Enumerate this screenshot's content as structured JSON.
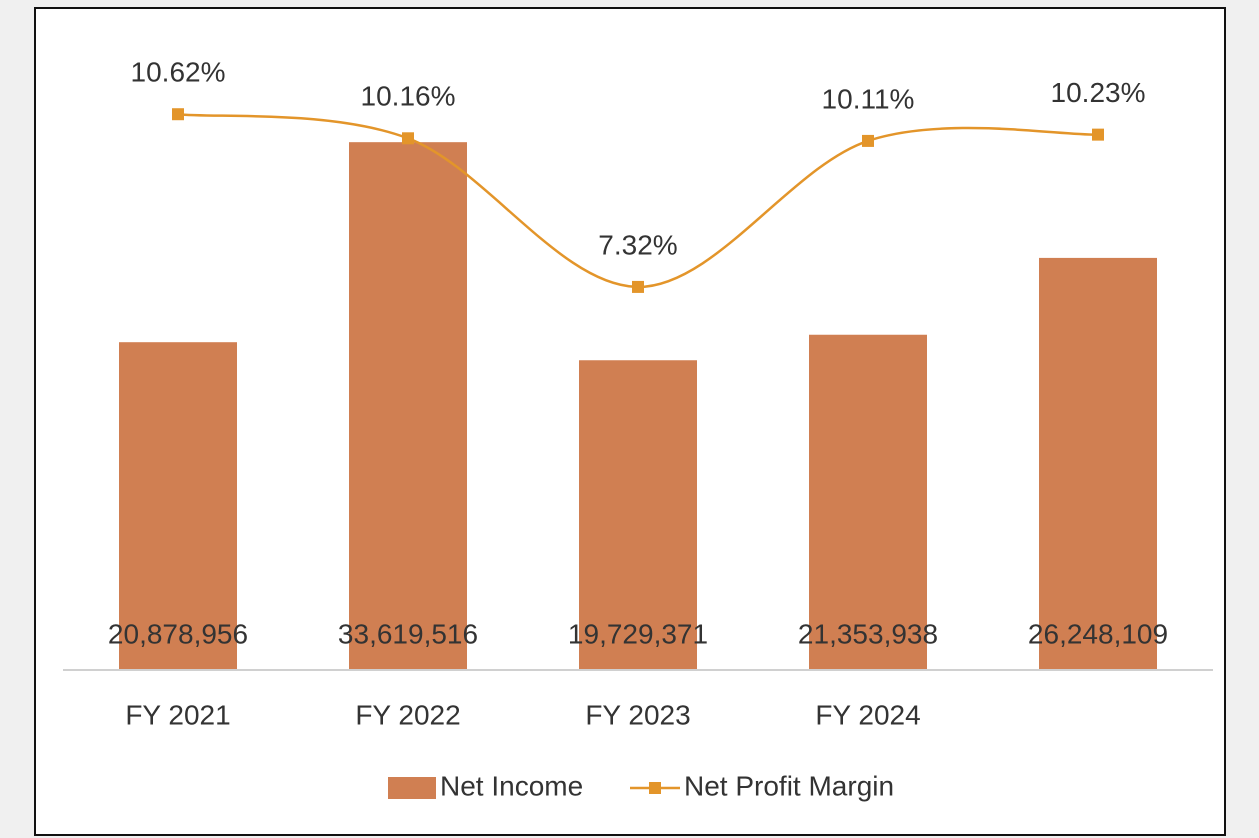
{
  "chart_data": {
    "type": "bar",
    "categories": [
      "FY 2021",
      "FY 2022",
      "FY 2023",
      "FY 2024",
      null
    ],
    "series": [
      {
        "name": "Net Income",
        "type": "bar",
        "color": "#d07f52",
        "values": [
          20878956,
          33619516,
          19729371,
          21353938,
          26248109
        ],
        "value_labels": [
          "20,878,956",
          "33,619,516",
          "19,729,371",
          "21,353,938",
          "26,248,109"
        ]
      },
      {
        "name": "Net Profit Margin",
        "type": "line",
        "axis": "y2",
        "color": "#e3952a",
        "values": [
          10.62,
          10.16,
          7.32,
          10.11,
          10.23
        ],
        "value_labels": [
          "10.62%",
          "10.16%",
          "7.32%",
          "10.11%",
          "10.23%"
        ]
      }
    ],
    "ylim": [
      0,
      40000000
    ],
    "y2lim": [
      0,
      12
    ],
    "legend": "bottom"
  }
}
